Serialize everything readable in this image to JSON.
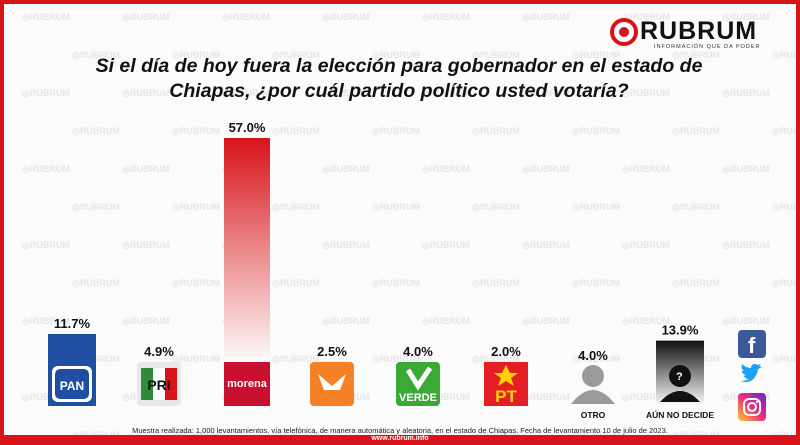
{
  "brand": {
    "name": "RUBRUM",
    "tagline": "INFORMACIÓN QUE DA PODER",
    "watermark": "RUBRUM",
    "colors": {
      "red": "#d7141a",
      "dark": "#111111"
    }
  },
  "title_line1": "Si el día de hoy fuera la elección para gobernador en el estado de",
  "title_line2": "Chiapas, ¿por cuál  partido político usted votaría?",
  "footer": {
    "note": "Muestra realizada: 1,000 levantamientos, vía telefónica, de manera automática y aleatoria, en el estado de Chiapas. Fecha de levantamiento 10 de julio de 2023.",
    "url": "www.rubrum.info"
  },
  "social_icons": [
    "facebook-icon",
    "twitter-icon",
    "instagram-icon"
  ],
  "chart_data": {
    "type": "bar",
    "title": "Si el día de hoy fuera la elección para gobernador en el estado de Chiapas, ¿por cuál  partido político usted votaría?",
    "categories": [
      "PAN",
      "PRI",
      "morena",
      "MC",
      "VERDE",
      "PT",
      "OTRO",
      "AÚN NO DECIDE"
    ],
    "values": [
      11.7,
      4.9,
      57.0,
      2.5,
      4.0,
      2.0,
      4.0,
      13.9
    ],
    "value_labels": [
      "11.7%",
      "4.9%",
      "57.0%",
      "2.5%",
      "4.0%",
      "2.0%",
      "4.0%",
      "13.9%"
    ],
    "printed_labels": [
      "",
      "",
      "",
      "",
      "",
      "",
      "OTRO",
      "AÚN NO DECIDE"
    ],
    "logo_text": [
      "PAN",
      "PRI",
      "morena",
      "",
      "VERDE",
      "PT",
      "",
      ""
    ],
    "bar_colors": [
      "#1f4fa3",
      "#e8e8e8",
      "#d7141a",
      "#f58025",
      "#3aa935",
      "#e31e24",
      "#9a9a9a",
      "#111111"
    ],
    "ylim": [
      0,
      57.0
    ],
    "grid": false,
    "legend": "none"
  }
}
